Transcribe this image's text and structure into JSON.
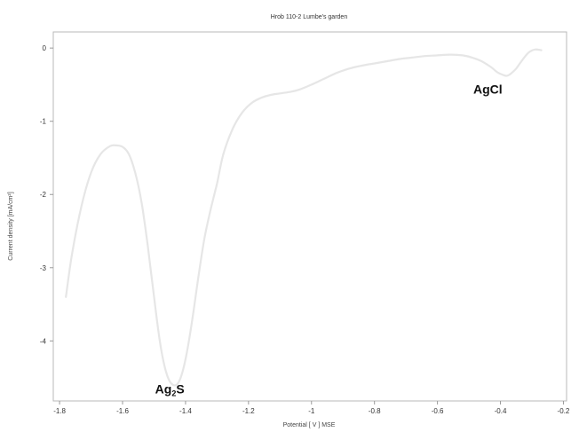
{
  "chart_data": {
    "type": "line",
    "title": "Hrob 110-2 Lumbe's garden",
    "xlabel": "Potential [ V ]   MSE",
    "ylabel": "Current density [mA/cm²]",
    "xlim": [
      -1.82,
      -0.19
    ],
    "ylim": [
      -4.82,
      0.22
    ],
    "xticks": [
      -1.8,
      -1.6,
      -1.4,
      -1.2,
      -1.0,
      -0.8,
      -0.6,
      -0.4,
      -0.2
    ],
    "xtick_labels": [
      "-1.8",
      "-1.6",
      "-1.4",
      "-1.2",
      "-1",
      "-0.8",
      "-0.6",
      "-0.4",
      "-0.2"
    ],
    "yticks": [
      0,
      -1,
      -2,
      -3,
      -4
    ],
    "ytick_labels": [
      "0",
      "-1",
      "-2",
      "-3",
      "-4"
    ],
    "grid": false,
    "legend": "none",
    "series": [
      {
        "color": "#e6e6e6",
        "x": [
          -1.78,
          -1.76,
          -1.73,
          -1.7,
          -1.67,
          -1.64,
          -1.62,
          -1.6,
          -1.58,
          -1.56,
          -1.54,
          -1.52,
          -1.5,
          -1.48,
          -1.46,
          -1.44,
          -1.42,
          -1.4,
          -1.38,
          -1.36,
          -1.34,
          -1.32,
          -1.3,
          -1.28,
          -1.25,
          -1.22,
          -1.19,
          -1.16,
          -1.13,
          -1.1,
          -1.07,
          -1.04,
          -1.0,
          -0.96,
          -0.92,
          -0.88,
          -0.84,
          -0.8,
          -0.76,
          -0.72,
          -0.68,
          -0.64,
          -0.6,
          -0.56,
          -0.52,
          -0.49,
          -0.46,
          -0.43,
          -0.41,
          -0.39,
          -0.38,
          -0.37,
          -0.35,
          -0.33,
          -0.31,
          -0.29,
          -0.27
        ],
        "y": [
          -3.4,
          -2.8,
          -2.15,
          -1.7,
          -1.45,
          -1.34,
          -1.33,
          -1.35,
          -1.45,
          -1.7,
          -2.1,
          -2.7,
          -3.4,
          -4.05,
          -4.45,
          -4.6,
          -4.55,
          -4.25,
          -3.75,
          -3.15,
          -2.6,
          -2.2,
          -1.85,
          -1.45,
          -1.1,
          -0.88,
          -0.75,
          -0.68,
          -0.64,
          -0.62,
          -0.6,
          -0.57,
          -0.5,
          -0.42,
          -0.34,
          -0.28,
          -0.24,
          -0.21,
          -0.18,
          -0.15,
          -0.13,
          -0.11,
          -0.1,
          -0.09,
          -0.1,
          -0.13,
          -0.18,
          -0.26,
          -0.33,
          -0.37,
          -0.38,
          -0.36,
          -0.28,
          -0.16,
          -0.06,
          -0.02,
          -0.03
        ]
      }
    ],
    "annotations": [
      {
        "text": "Ag",
        "sub": "2",
        "text_after": "S",
        "x": -1.45,
        "y": -4.72
      },
      {
        "text": "AgCl",
        "sub": "",
        "text_after": "",
        "x": -0.44,
        "y": -0.62
      }
    ],
    "colors": {
      "frame": "#b8b8b8",
      "tick": "#9a9a9a",
      "background": "#ffffff"
    }
  }
}
